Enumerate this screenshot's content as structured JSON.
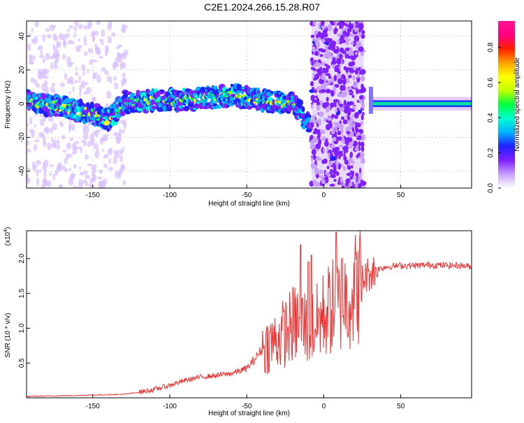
{
  "figure_title": "C2E1.2024.266.15.28.R07",
  "chart_data": [
    {
      "type": "heatmap",
      "xlabel": "Height of straight line (km)",
      "ylabel": "Frequency (Hz)",
      "xlim": [
        -193,
        96
      ],
      "ylim": [
        -50,
        49
      ],
      "x_ticks": [
        -150,
        -100,
        -50,
        0,
        50
      ],
      "x_tick_labels": [
        "-150",
        "-100",
        "-50",
        "0",
        "50"
      ],
      "y_ticks": [
        -40,
        -20,
        0,
        20,
        40
      ],
      "y_tick_labels": [
        "-40",
        "-20",
        "0",
        "20",
        "40"
      ],
      "grid": true,
      "colorbar": {
        "label": "Normalized spectral amplitude",
        "range": [
          0,
          0.95
        ],
        "ticks": [
          0.0,
          0.2,
          0.4,
          0.6,
          0.8
        ],
        "tick_labels": [
          "0.0",
          "0.2",
          "0.4",
          "0.6",
          "0.8"
        ],
        "colors": [
          "#ffffff",
          "#c8a0ff",
          "#8020ff",
          "#2020ff",
          "#00b0ff",
          "#00ffd0",
          "#00ff40",
          "#c0ff00",
          "#ffff00",
          "#ffa000",
          "#ff2000",
          "#ff0080",
          "#ff1493"
        ]
      },
      "features": [
        {
          "name": "main band",
          "x_range": [
            -193,
            -10
          ],
          "freq_center_km": [
            [
              -193,
              2
            ],
            [
              -150,
              -6
            ],
            [
              -140,
              -10
            ],
            [
              -130,
              1
            ],
            [
              -100,
              2
            ],
            [
              -80,
              3
            ],
            [
              -60,
              5
            ],
            [
              -40,
              2
            ],
            [
              -20,
              0
            ],
            [
              -12,
              -10
            ]
          ],
          "peak_amplitude": 0.6
        },
        {
          "name": "broadband burst",
          "x_range": [
            -8,
            26
          ],
          "freq_range": [
            -50,
            49
          ],
          "peak_amplitude": 0.25
        },
        {
          "name": "steady tone",
          "x_range": [
            32,
            96
          ],
          "freq": 0,
          "peak_amplitude": 0.6
        }
      ]
    },
    {
      "type": "line",
      "xlabel": "Height of straight line (km)",
      "ylabel": "SNR (10 * v/v)",
      "y_exponent_label": "(x10",
      "y_exponent": "4",
      "xlim": [
        -193,
        96
      ],
      "ylim": [
        0,
        2.4
      ],
      "x_ticks": [
        -150,
        -100,
        -50,
        0,
        50
      ],
      "x_tick_labels": [
        "-150",
        "-100",
        "-50",
        "0",
        "50"
      ],
      "y_ticks": [
        0.5,
        1.0,
        1.5,
        2.0
      ],
      "y_tick_labels": [
        "0.5",
        "1.0",
        "1.5",
        "2.0"
      ],
      "line_color": "#ee3333",
      "envelope": {
        "x": [
          -193,
          -170,
          -150,
          -130,
          -120,
          -110,
          -100,
          -90,
          -80,
          -70,
          -60,
          -50,
          -45,
          -40,
          -35,
          -30,
          -25,
          -20,
          -15,
          -10,
          -5,
          0,
          5,
          10,
          15,
          20,
          25,
          30,
          35,
          40,
          50,
          60,
          70,
          80,
          90,
          96
        ],
        "y": [
          0.02,
          0.03,
          0.04,
          0.05,
          0.08,
          0.12,
          0.18,
          0.25,
          0.3,
          0.32,
          0.35,
          0.42,
          0.55,
          0.7,
          0.78,
          0.85,
          0.95,
          1.05,
          1.1,
          1.0,
          1.05,
          1.2,
          1.3,
          1.35,
          1.45,
          1.55,
          1.7,
          1.8,
          1.85,
          1.88,
          1.9,
          1.9,
          1.91,
          1.9,
          1.9,
          1.88
        ]
      },
      "peaks": [
        {
          "x": -15,
          "y": 2.2
        },
        {
          "x": -10,
          "y": 1.95
        },
        {
          "x": -8,
          "y": 2.05
        },
        {
          "x": 8,
          "y": 2.38
        },
        {
          "x": 12,
          "y": 2.0
        }
      ]
    }
  ]
}
